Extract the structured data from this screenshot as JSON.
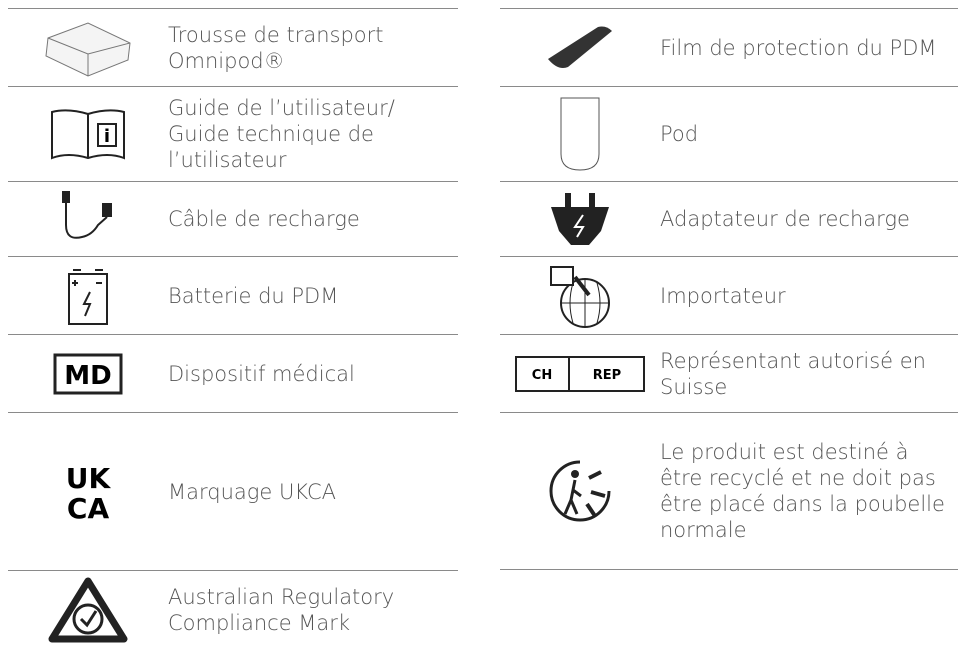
{
  "left": {
    "items": [
      {
        "label": "Trousse de transport Omnipod®"
      },
      {
        "label": "Guide de l’utilisateur/ Guide technique de l’utilisateur"
      },
      {
        "label": "Câble de recharge"
      },
      {
        "label": "Batterie du PDM"
      },
      {
        "label": "Dispositif médical",
        "icon_text": "MD"
      },
      {
        "label": "Marquage UKCA",
        "icon_text": [
          "UK",
          "CA"
        ]
      },
      {
        "label": "Australian Regulatory Compliance Mark"
      }
    ]
  },
  "right": {
    "items": [
      {
        "label": "Film de protection du PDM"
      },
      {
        "label": "Pod"
      },
      {
        "label": "Adaptateur de recharge"
      },
      {
        "label": "Importateur"
      },
      {
        "label": "Représentant autorisé en Suisse",
        "icon_text": [
          "CH",
          "REP"
        ]
      },
      {
        "label": "Le produit est destiné à être recyclé et ne doit pas être placé dans la poubelle normale"
      }
    ]
  }
}
